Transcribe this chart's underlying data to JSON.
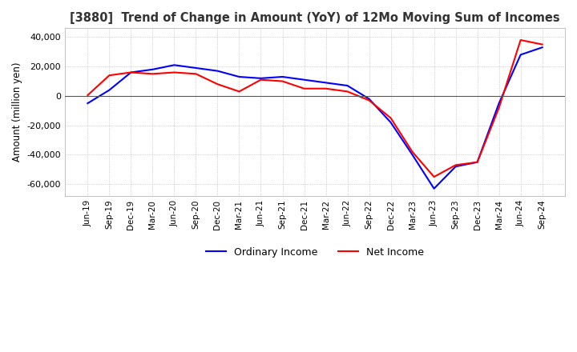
{
  "title": "[3880]  Trend of Change in Amount (YoY) of 12Mo Moving Sum of Incomes",
  "ylabel": "Amount (million yen)",
  "ylim": [
    -68000,
    46000
  ],
  "yticks": [
    -60000,
    -40000,
    -20000,
    0,
    20000,
    40000
  ],
  "background_color": "#ffffff",
  "grid_color": "#aaaaaa",
  "ordinary_color": "#0000ff",
  "net_color": "#ff0000",
  "x_labels": [
    "Jun-19",
    "Sep-19",
    "Dec-19",
    "Mar-20",
    "Jun-20",
    "Sep-20",
    "Dec-20",
    "Mar-21",
    "Jun-21",
    "Sep-21",
    "Dec-21",
    "Mar-22",
    "Jun-22",
    "Sep-22",
    "Dec-22",
    "Mar-23",
    "Jun-23",
    "Sep-23",
    "Dec-23",
    "Mar-24",
    "Jun-24",
    "Sep-24"
  ],
  "ordinary_income": [
    -5000,
    4000,
    16000,
    18000,
    21000,
    19000,
    17000,
    13000,
    12000,
    13000,
    11000,
    9000,
    7000,
    -2000,
    -18000,
    -40000,
    -63000,
    -48000,
    -45000,
    -5000,
    28000,
    33000
  ],
  "net_income": [
    500,
    14000,
    16000,
    15000,
    16000,
    15000,
    8000,
    3000,
    11000,
    10000,
    5000,
    5000,
    3000,
    -3000,
    -15000,
    -38000,
    -55000,
    -47000,
    -45000,
    -8000,
    38000,
    35000
  ]
}
